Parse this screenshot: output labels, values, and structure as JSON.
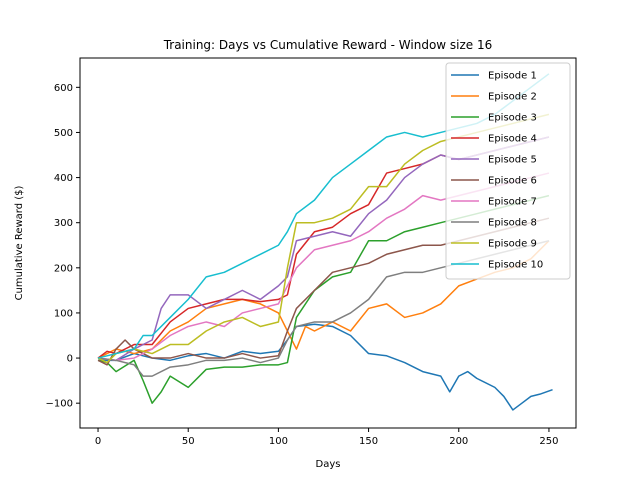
{
  "chart_data": {
    "type": "line",
    "title": "Training: Days vs Cumulative Reward - Window size 16",
    "xlabel": "Days",
    "ylabel": "Cumulative Reward ($)",
    "xlim": [
      -10,
      265
    ],
    "ylim": [
      -155,
      665
    ],
    "xticks": [
      0,
      50,
      100,
      150,
      200,
      250
    ],
    "yticks": [
      -100,
      0,
      100,
      200,
      300,
      400,
      500,
      600
    ],
    "grid": false,
    "legend_position": "top-right",
    "series": [
      {
        "name": "Episode 1",
        "color": "#1f77b4",
        "points": [
          [
            0,
            -5
          ],
          [
            10,
            -5
          ],
          [
            20,
            10
          ],
          [
            30,
            0
          ],
          [
            40,
            -5
          ],
          [
            50,
            5
          ],
          [
            60,
            10
          ],
          [
            70,
            0
          ],
          [
            80,
            15
          ],
          [
            90,
            10
          ],
          [
            100,
            15
          ],
          [
            105,
            40
          ],
          [
            110,
            70
          ],
          [
            120,
            75
          ],
          [
            130,
            70
          ],
          [
            140,
            50
          ],
          [
            150,
            10
          ],
          [
            160,
            5
          ],
          [
            170,
            -10
          ],
          [
            180,
            -30
          ],
          [
            190,
            -40
          ],
          [
            195,
            -75
          ],
          [
            200,
            -40
          ],
          [
            205,
            -30
          ],
          [
            210,
            -45
          ],
          [
            220,
            -65
          ],
          [
            225,
            -85
          ],
          [
            230,
            -115
          ],
          [
            235,
            -100
          ],
          [
            240,
            -85
          ],
          [
            245,
            -80
          ],
          [
            252,
            -70
          ]
        ]
      },
      {
        "name": "Episode 2",
        "color": "#ff7f0e",
        "points": [
          [
            0,
            0
          ],
          [
            5,
            10
          ],
          [
            10,
            20
          ],
          [
            20,
            10
          ],
          [
            30,
            20
          ],
          [
            40,
            60
          ],
          [
            50,
            80
          ],
          [
            60,
            110
          ],
          [
            70,
            120
          ],
          [
            80,
            130
          ],
          [
            90,
            120
          ],
          [
            100,
            100
          ],
          [
            105,
            60
          ],
          [
            110,
            20
          ],
          [
            115,
            70
          ],
          [
            120,
            60
          ],
          [
            130,
            80
          ],
          [
            140,
            60
          ],
          [
            150,
            110
          ],
          [
            160,
            120
          ],
          [
            170,
            90
          ],
          [
            180,
            100
          ],
          [
            190,
            120
          ],
          [
            200,
            160
          ],
          [
            210,
            175
          ],
          [
            220,
            190
          ],
          [
            230,
            200
          ],
          [
            240,
            220
          ],
          [
            250,
            260
          ]
        ]
      },
      {
        "name": "Episode 3",
        "color": "#2ca02c",
        "points": [
          [
            0,
            -5
          ],
          [
            5,
            -10
          ],
          [
            10,
            -30
          ],
          [
            20,
            -5
          ],
          [
            25,
            -50
          ],
          [
            30,
            -100
          ],
          [
            35,
            -75
          ],
          [
            40,
            -40
          ],
          [
            50,
            -65
          ],
          [
            60,
            -25
          ],
          [
            70,
            -20
          ],
          [
            80,
            -20
          ],
          [
            90,
            -15
          ],
          [
            100,
            -15
          ],
          [
            105,
            -10
          ],
          [
            110,
            90
          ],
          [
            120,
            150
          ],
          [
            130,
            180
          ],
          [
            140,
            190
          ],
          [
            150,
            260
          ],
          [
            160,
            260
          ],
          [
            170,
            280
          ],
          [
            180,
            290
          ],
          [
            190,
            300
          ],
          [
            200,
            310
          ],
          [
            210,
            320
          ],
          [
            220,
            330
          ],
          [
            230,
            340
          ],
          [
            240,
            350
          ],
          [
            250,
            360
          ]
        ]
      },
      {
        "name": "Episode 4",
        "color": "#d62728",
        "points": [
          [
            0,
            0
          ],
          [
            5,
            15
          ],
          [
            10,
            10
          ],
          [
            20,
            30
          ],
          [
            30,
            30
          ],
          [
            40,
            80
          ],
          [
            50,
            110
          ],
          [
            60,
            120
          ],
          [
            70,
            130
          ],
          [
            80,
            130
          ],
          [
            90,
            125
          ],
          [
            100,
            130
          ],
          [
            105,
            140
          ],
          [
            110,
            230
          ],
          [
            120,
            280
          ],
          [
            130,
            290
          ],
          [
            140,
            320
          ],
          [
            150,
            340
          ],
          [
            160,
            410
          ],
          [
            170,
            420
          ],
          [
            180,
            430
          ],
          [
            190,
            450
          ],
          [
            200,
            440
          ],
          [
            210,
            450
          ],
          [
            220,
            460
          ],
          [
            230,
            470
          ],
          [
            240,
            480
          ],
          [
            250,
            490
          ]
        ]
      },
      {
        "name": "Episode 5",
        "color": "#9467bd",
        "points": [
          [
            0,
            0
          ],
          [
            10,
            -5
          ],
          [
            20,
            20
          ],
          [
            30,
            40
          ],
          [
            35,
            110
          ],
          [
            40,
            140
          ],
          [
            50,
            140
          ],
          [
            60,
            110
          ],
          [
            70,
            130
          ],
          [
            80,
            150
          ],
          [
            90,
            130
          ],
          [
            100,
            160
          ],
          [
            105,
            180
          ],
          [
            110,
            260
          ],
          [
            120,
            270
          ],
          [
            130,
            280
          ],
          [
            140,
            270
          ],
          [
            150,
            320
          ],
          [
            160,
            350
          ],
          [
            170,
            400
          ],
          [
            180,
            430
          ],
          [
            190,
            450
          ],
          [
            200,
            440
          ],
          [
            210,
            450
          ],
          [
            220,
            460
          ],
          [
            230,
            470
          ],
          [
            240,
            480
          ],
          [
            250,
            490
          ]
        ]
      },
      {
        "name": "Episode 6",
        "color": "#8c564b",
        "points": [
          [
            0,
            -5
          ],
          [
            5,
            -15
          ],
          [
            10,
            20
          ],
          [
            15,
            40
          ],
          [
            20,
            20
          ],
          [
            30,
            0
          ],
          [
            40,
            0
          ],
          [
            50,
            10
          ],
          [
            60,
            0
          ],
          [
            70,
            0
          ],
          [
            80,
            10
          ],
          [
            90,
            0
          ],
          [
            100,
            5
          ],
          [
            105,
            60
          ],
          [
            110,
            110
          ],
          [
            120,
            150
          ],
          [
            130,
            190
          ],
          [
            140,
            200
          ],
          [
            150,
            210
          ],
          [
            160,
            230
          ],
          [
            170,
            240
          ],
          [
            180,
            250
          ],
          [
            190,
            250
          ],
          [
            200,
            260
          ],
          [
            210,
            270
          ],
          [
            220,
            280
          ],
          [
            230,
            290
          ],
          [
            240,
            300
          ],
          [
            250,
            310
          ]
        ]
      },
      {
        "name": "Episode 7",
        "color": "#e377c2",
        "points": [
          [
            0,
            0
          ],
          [
            10,
            -5
          ],
          [
            20,
            0
          ],
          [
            30,
            20
          ],
          [
            40,
            50
          ],
          [
            50,
            70
          ],
          [
            60,
            80
          ],
          [
            70,
            70
          ],
          [
            80,
            100
          ],
          [
            90,
            110
          ],
          [
            100,
            120
          ],
          [
            105,
            160
          ],
          [
            110,
            200
          ],
          [
            120,
            240
          ],
          [
            130,
            250
          ],
          [
            140,
            260
          ],
          [
            150,
            280
          ],
          [
            160,
            310
          ],
          [
            170,
            330
          ],
          [
            180,
            360
          ],
          [
            190,
            350
          ],
          [
            200,
            360
          ],
          [
            210,
            370
          ],
          [
            220,
            380
          ],
          [
            230,
            390
          ],
          [
            240,
            400
          ],
          [
            250,
            410
          ]
        ]
      },
      {
        "name": "Episode 8",
        "color": "#7f7f7f",
        "points": [
          [
            0,
            0
          ],
          [
            10,
            -5
          ],
          [
            20,
            -15
          ],
          [
            25,
            -40
          ],
          [
            30,
            -40
          ],
          [
            40,
            -20
          ],
          [
            50,
            -15
          ],
          [
            60,
            -5
          ],
          [
            70,
            -5
          ],
          [
            80,
            0
          ],
          [
            90,
            -10
          ],
          [
            100,
            0
          ],
          [
            105,
            40
          ],
          [
            110,
            70
          ],
          [
            120,
            80
          ],
          [
            130,
            80
          ],
          [
            140,
            100
          ],
          [
            150,
            130
          ],
          [
            160,
            180
          ],
          [
            170,
            190
          ],
          [
            180,
            190
          ],
          [
            190,
            200
          ],
          [
            200,
            210
          ],
          [
            210,
            220
          ],
          [
            220,
            230
          ],
          [
            230,
            240
          ],
          [
            240,
            250
          ],
          [
            250,
            260
          ]
        ]
      },
      {
        "name": "Episode 9",
        "color": "#bcbd22",
        "points": [
          [
            0,
            0
          ],
          [
            5,
            -10
          ],
          [
            10,
            10
          ],
          [
            20,
            20
          ],
          [
            30,
            10
          ],
          [
            40,
            30
          ],
          [
            50,
            30
          ],
          [
            60,
            60
          ],
          [
            70,
            80
          ],
          [
            80,
            90
          ],
          [
            90,
            70
          ],
          [
            100,
            80
          ],
          [
            105,
            200
          ],
          [
            110,
            300
          ],
          [
            120,
            300
          ],
          [
            130,
            310
          ],
          [
            140,
            330
          ],
          [
            150,
            380
          ],
          [
            160,
            380
          ],
          [
            170,
            430
          ],
          [
            180,
            460
          ],
          [
            190,
            480
          ],
          [
            200,
            490
          ],
          [
            210,
            500
          ],
          [
            220,
            510
          ],
          [
            230,
            520
          ],
          [
            240,
            530
          ],
          [
            250,
            540
          ]
        ]
      },
      {
        "name": "Episode 10",
        "color": "#17becf",
        "points": [
          [
            0,
            0
          ],
          [
            10,
            10
          ],
          [
            20,
            20
          ],
          [
            25,
            50
          ],
          [
            30,
            50
          ],
          [
            40,
            90
          ],
          [
            50,
            130
          ],
          [
            60,
            180
          ],
          [
            70,
            190
          ],
          [
            80,
            210
          ],
          [
            90,
            230
          ],
          [
            100,
            250
          ],
          [
            105,
            280
          ],
          [
            110,
            320
          ],
          [
            120,
            350
          ],
          [
            130,
            400
          ],
          [
            140,
            430
          ],
          [
            150,
            460
          ],
          [
            160,
            490
          ],
          [
            170,
            500
          ],
          [
            180,
            490
          ],
          [
            190,
            500
          ],
          [
            200,
            510
          ],
          [
            210,
            520
          ],
          [
            220,
            540
          ],
          [
            230,
            570
          ],
          [
            240,
            600
          ],
          [
            250,
            630
          ]
        ]
      }
    ]
  }
}
